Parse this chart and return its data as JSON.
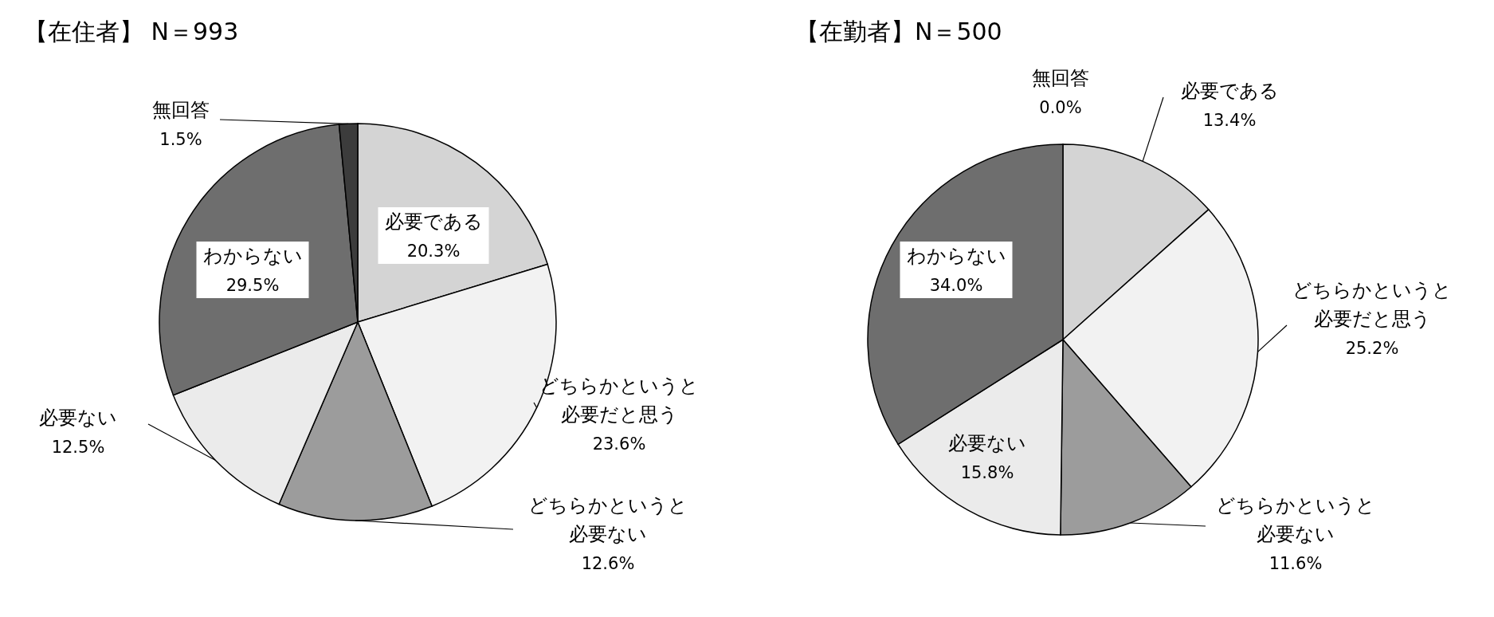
{
  "chart_data": [
    {
      "type": "pie",
      "title": "【在住者】 N＝993",
      "categories": [
        "必要である",
        "どちらかというと必要だと思う",
        "どちらかというと必要ない",
        "必要ない",
        "わからない",
        "無回答"
      ],
      "values": [
        20.3,
        23.6,
        12.6,
        12.5,
        29.5,
        1.5
      ],
      "value_labels": [
        "20.3%",
        "23.6%",
        "12.6%",
        "12.5%",
        "29.5%",
        "1.5%"
      ],
      "colors": [
        "#d4d4d4",
        "#f2f2f2",
        "#9c9c9c",
        "#ebebeb",
        "#6e6e6e",
        "#3c3c3c"
      ]
    },
    {
      "type": "pie",
      "title": "【在勤者】N＝500",
      "categories": [
        "必要である",
        "どちらかというと必要だと思う",
        "どちらかというと必要ない",
        "必要ない",
        "わからない",
        "無回答"
      ],
      "values": [
        13.4,
        25.2,
        11.6,
        15.8,
        34.0,
        0.0
      ],
      "value_labels": [
        "13.4%",
        "25.2%",
        "11.6%",
        "15.8%",
        "34.0%",
        "0.0%"
      ],
      "colors": [
        "#d4d4d4",
        "#f2f2f2",
        "#9c9c9c",
        "#ebebeb",
        "#6e6e6e",
        "#3c3c3c"
      ]
    }
  ]
}
